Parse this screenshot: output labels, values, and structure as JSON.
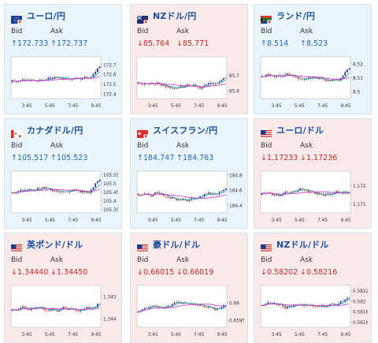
{
  "bid_label": "Bid",
  "ask_label": "Ask",
  "x_ticks": [
    "3:45",
    "5:45",
    "7:45",
    "9:45"
  ],
  "colors": {
    "up_card_bg": "#e9f4fb",
    "down_card_bg": "#fbeaea",
    "up_text": "#1f66b5",
    "down_text": "#c62828",
    "title_text": "#1a4f9c",
    "ma_short": "#2aa7a0",
    "ma_long": "#c940c9",
    "candle_up": "#2b3a9e",
    "candle_down": "#e23a2e"
  },
  "pairs": [
    {
      "title": "ユーロ/円",
      "flag": "eu-flag-icon",
      "trend": "up",
      "bid": "↑172.733",
      "ask": "↑172.737",
      "chart_data": {
        "type": "candlestick",
        "y_ticks": [
          "172.7",
          "172.6",
          "172.5",
          "172.4"
        ],
        "ylim": [
          172.35,
          172.78
        ],
        "x_ticks": [
          "3:45",
          "5:45",
          "7:45",
          "9:45"
        ]
      }
    },
    {
      "title": "NZドル/円",
      "flag": "nz-flag-icon",
      "trend": "down",
      "bid": "↓85.764",
      "ask": "↓85.771",
      "chart_data": {
        "type": "candlestick",
        "y_ticks": [
          "85.7",
          "85.6"
        ],
        "ylim": [
          85.55,
          85.82
        ],
        "x_ticks": [
          "3:45",
          "5:45",
          "7:45",
          "9:45"
        ]
      }
    },
    {
      "title": "ランド/円",
      "flag": "za-flag-icon",
      "trend": "up",
      "bid": "↑8.514",
      "ask": "↑8.523",
      "chart_data": {
        "type": "candlestick",
        "y_ticks": [
          "8.52",
          "8.51",
          "8.5"
        ],
        "ylim": [
          8.495,
          8.525
        ],
        "x_ticks": [
          "3:45",
          "5:45",
          "7:45",
          "9:45"
        ]
      }
    },
    {
      "title": "カナダドル/円",
      "flag": "ca-flag-icon",
      "trend": "up",
      "bid": "↑105.517",
      "ask": "↑105.523",
      "chart_data": {
        "type": "candlestick",
        "y_ticks": [
          "105.55",
          "105.5",
          "105.45",
          "105.4",
          "105.35"
        ],
        "ylim": [
          105.33,
          105.57
        ],
        "x_ticks": [
          "3:45",
          "5:45",
          "7:45",
          "9:45"
        ]
      }
    },
    {
      "title": "スイスフラン/円",
      "flag": "ch-flag-icon",
      "trend": "up",
      "bid": "↑184.747",
      "ask": "↑184.763",
      "chart_data": {
        "type": "candlestick",
        "y_ticks": [
          "184.8",
          "184.6",
          "184.4"
        ],
        "ylim": [
          184.3,
          184.85
        ],
        "x_ticks": [
          "3:45",
          "5:45",
          "7:45",
          "9:45"
        ]
      }
    },
    {
      "title": "ユーロ/ドル",
      "flag": "us-flag-icon",
      "trend": "down",
      "bid": "↓1.17233",
      "ask": "↓1.17236",
      "chart_data": {
        "type": "candlestick",
        "y_ticks": [
          "1.172",
          "1.171"
        ],
        "ylim": [
          1.1705,
          1.1728
        ],
        "x_ticks": [
          "3:45",
          "5:45",
          "7:45",
          "9:45"
        ]
      }
    },
    {
      "title": "英ポンド/ドル",
      "flag": "us-flag-icon",
      "trend": "down",
      "bid": "↓1.34440",
      "ask": "↓1.34450",
      "chart_data": {
        "type": "candlestick",
        "y_ticks": [
          "1.345",
          "1.344"
        ],
        "ylim": [
          1.3436,
          1.3455
        ],
        "x_ticks": [
          "3:45",
          "5:45",
          "7:45",
          "9:45"
        ]
      }
    },
    {
      "title": "豪ドル/ドル",
      "flag": "us-flag-icon",
      "trend": "down",
      "bid": "↓0.66015",
      "ask": "↓0.66019",
      "chart_data": {
        "type": "candlestick",
        "y_ticks": [
          "0.66",
          "0.6595"
        ],
        "ylim": [
          0.6593,
          0.6605
        ],
        "x_ticks": [
          "3:45",
          "5:45",
          "7:45",
          "9:45"
        ]
      }
    },
    {
      "title": "NZドル/ドル",
      "flag": "us-flag-icon",
      "trend": "down",
      "bid": "↓0.58202",
      "ask": "↓0.58216",
      "chart_data": {
        "type": "candlestick",
        "y_ticks": [
          "0.5822",
          "0.582",
          "0.5818",
          "0.5816"
        ],
        "ylim": [
          0.5815,
          0.5823
        ],
        "x_ticks": [
          "3:45",
          "5:45",
          "7:45",
          "9:45"
        ]
      }
    }
  ]
}
